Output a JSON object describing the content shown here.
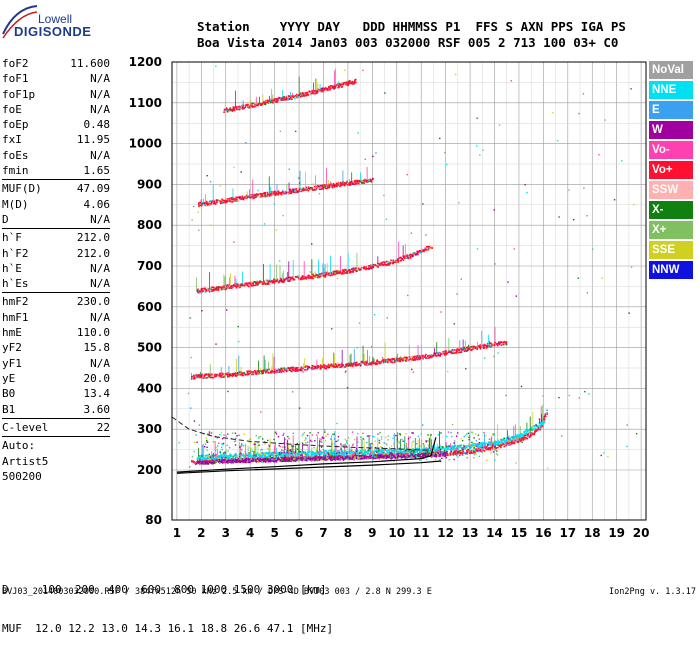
{
  "logo": {
    "line1": "Lowell",
    "line2": "DIGISONDE"
  },
  "header": {
    "line1": "Station    YYYY DAY   DDD HHMMSS P1  FFS S AXN PPS IGA PS",
    "line2": "Boa Vista 2014 Jan03 003 032000 RSF 005 2 713 100 03+ C0"
  },
  "params": [
    {
      "name": "foF2",
      "value": "11.600"
    },
    {
      "name": "foF1",
      "value": "N/A"
    },
    {
      "name": "foF1p",
      "value": "N/A"
    },
    {
      "name": "foE",
      "value": "N/A"
    },
    {
      "name": "foEp",
      "value": "0.48"
    },
    {
      "name": "fxI",
      "value": "11.95"
    },
    {
      "name": "foEs",
      "value": "N/A"
    },
    {
      "name": "fmin",
      "value": "1.65"
    },
    {
      "name": "MUF(D)",
      "value": "47.09",
      "sep": true
    },
    {
      "name": "M(D)",
      "value": "4.06"
    },
    {
      "name": "D",
      "value": "N/A"
    },
    {
      "name": "h`F",
      "value": "212.0",
      "sep": true
    },
    {
      "name": "h`F2",
      "value": "212.0"
    },
    {
      "name": "h`E",
      "value": "N/A"
    },
    {
      "name": "h`Es",
      "value": "N/A"
    },
    {
      "name": "hmF2",
      "value": "230.0",
      "sep": true
    },
    {
      "name": "hmF1",
      "value": "N/A"
    },
    {
      "name": "hmE",
      "value": "110.0"
    },
    {
      "name": "yF2",
      "value": "15.8"
    },
    {
      "name": "yF1",
      "value": "N/A"
    },
    {
      "name": "yE",
      "value": "20.0"
    },
    {
      "name": "B0",
      "value": "13.4"
    },
    {
      "name": "B1",
      "value": "3.60"
    },
    {
      "name": "C-level",
      "value": "22",
      "sep": true
    }
  ],
  "autoscale": [
    "Auto:",
    "Artist5",
    "500200"
  ],
  "legend": [
    {
      "label": "NoVal",
      "color": "#a0a0a0"
    },
    {
      "label": "NNE",
      "color": "#00e0f0"
    },
    {
      "label": "E",
      "color": "#3aa0f0"
    },
    {
      "label": "W",
      "color": "#a000a0"
    },
    {
      "label": "Vo-",
      "color": "#ff40b0"
    },
    {
      "label": "Vo+",
      "color": "#ff1030"
    },
    {
      "label": "SSW",
      "color": "#ffb0b0"
    },
    {
      "label": "X-",
      "color": "#108010"
    },
    {
      "label": "X+",
      "color": "#80c060"
    },
    {
      "label": "SSE",
      "color": "#d0d020"
    },
    {
      "label": "NNW",
      "color": "#1010e0"
    }
  ],
  "dmuf": {
    "line1": "D     100  200  400  600  800 1000 1500 3000 [km]",
    "line2": "MUF  12.0 12.2 13.0 14.3 16.1 18.8 26.6 47.1 [MHz]"
  },
  "footer": {
    "left": "BVJ03_2014003032000.RSF / 384fx512h 50 kHz 2.5 km / DPS-4D BVJ03 003 / 2.8 N 299.3 E",
    "right": "Ion2Png v. 1.3.17"
  },
  "chart_data": {
    "type": "scatter",
    "x_range": [
      0.8,
      20.2
    ],
    "y_range": [
      80,
      1200
    ],
    "x_ticks": [
      1,
      2,
      3,
      4,
      5,
      6,
      7,
      8,
      9,
      10,
      11,
      12,
      13,
      14,
      15,
      16,
      17,
      18,
      19,
      20
    ],
    "y_ticks": [
      80,
      200,
      300,
      400,
      500,
      600,
      700,
      800,
      900,
      1000,
      1100,
      1200
    ],
    "y_scale_note": "axis compressed below 200 km",
    "grid": true,
    "legend_position": "right",
    "traces": [
      {
        "x": [
          1.6,
          3,
          5,
          7,
          9,
          11,
          12,
          13,
          14,
          15,
          15.5,
          15.9,
          16.1
        ],
        "y": [
          220,
          225,
          228,
          232,
          235,
          240,
          242,
          248,
          258,
          275,
          290,
          310,
          345
        ],
        "color": "#ff1030"
      },
      {
        "x": [
          1.8,
          3,
          5,
          7,
          9,
          11,
          12
        ],
        "y": [
          220,
          224,
          227,
          230,
          234,
          238,
          240
        ],
        "color": "#a000a0"
      },
      {
        "x": [
          1.8,
          3,
          5,
          7,
          9,
          11,
          12,
          13,
          14,
          15,
          16
        ],
        "y": [
          232,
          236,
          240,
          244,
          246,
          250,
          255,
          260,
          268,
          285,
          320
        ],
        "color": "#00e0f0"
      },
      {
        "x": [
          1.6,
          3,
          5,
          7,
          9,
          11,
          13,
          14.5
        ],
        "y": [
          430,
          435,
          445,
          455,
          465,
          478,
          500,
          515
        ],
        "color": "#ff1030"
      },
      {
        "x": [
          1.8,
          3,
          5,
          7,
          8.5,
          9.7,
          10.7,
          11.4
        ],
        "y": [
          640,
          650,
          665,
          680,
          695,
          710,
          730,
          750
        ],
        "color": "#ff1030"
      },
      {
        "x": [
          1.9,
          3,
          4,
          5,
          6,
          7,
          8,
          9
        ],
        "y": [
          853,
          862,
          872,
          880,
          888,
          896,
          905,
          912
        ],
        "color": "#ff1030"
      },
      {
        "x": [
          2.9,
          4,
          5,
          6,
          7,
          8.3
        ],
        "y": [
          1083,
          1095,
          1108,
          1120,
          1135,
          1155
        ],
        "color": "#ff1030"
      }
    ],
    "profile_curve": {
      "x": [
        1,
        3,
        5,
        7,
        9,
        10,
        11,
        11.4,
        11.6
      ],
      "y": [
        195,
        202,
        208,
        215,
        220,
        224,
        228,
        235,
        280
      ],
      "color": "#000000"
    },
    "profile_curve_lower": {
      "x": [
        1,
        3,
        6,
        9,
        11,
        11.8
      ],
      "y": [
        192,
        198,
        205,
        212,
        218,
        222
      ],
      "color": "#000000"
    },
    "dashed_curve": {
      "x": [
        0.8,
        1.5,
        2.5,
        4,
        6,
        8,
        10,
        11.4
      ],
      "y": [
        330,
        300,
        282,
        270,
        262,
        256,
        252,
        248
      ],
      "color": "#222222"
    }
  }
}
